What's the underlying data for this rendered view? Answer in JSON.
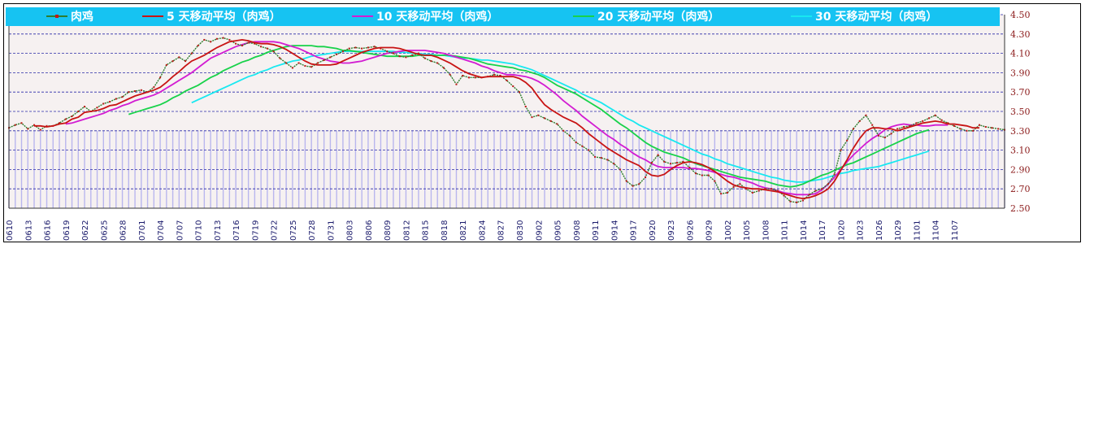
{
  "colors": {
    "legend_bg": "#16c3f2",
    "plot_bg": "#f6f1f1",
    "grid": "#2a2aa8",
    "vbar": "#b9b6ee",
    "axis_text": "#8b1a1a",
    "xtick_text": "#1a1a6b"
  },
  "chart_data": {
    "type": "line",
    "xlabel": "",
    "ylabel": "",
    "ylim": [
      2.5,
      4.5
    ],
    "yticks": [
      "4.50",
      "4.30",
      "4.10",
      "3.90",
      "3.70",
      "3.50",
      "3.30",
      "3.10",
      "2.90",
      "2.70",
      "2.50"
    ],
    "grid": true,
    "legend_position": "top",
    "xticks": [
      "0610",
      "0613",
      "0616",
      "0619",
      "0622",
      "0625",
      "0628",
      "0701",
      "0704",
      "0707",
      "0710",
      "0713",
      "0716",
      "0719",
      "0722",
      "0725",
      "0728",
      "0731",
      "0803",
      "0806",
      "0809",
      "0812",
      "0815",
      "0818",
      "0821",
      "0824",
      "0827",
      "0830",
      "0902",
      "0905",
      "0908",
      "0911",
      "0914",
      "0917",
      "0920",
      "0923",
      "0926",
      "0929",
      "1002",
      "1005",
      "1008",
      "1011",
      "1014",
      "1017",
      "1020",
      "1023",
      "1026",
      "1029",
      "1101",
      "1104",
      "1107"
    ],
    "series": [
      {
        "name": "肉鸡",
        "color": "#2e7d2e",
        "line_color": "#c01818",
        "marker": true,
        "start_index": 0,
        "values": [
          3.33,
          3.36,
          3.38,
          3.32,
          3.36,
          3.31,
          3.35,
          3.35,
          3.38,
          3.42,
          3.45,
          3.5,
          3.55,
          3.5,
          3.54,
          3.58,
          3.6,
          3.63,
          3.65,
          3.7,
          3.71,
          3.72,
          3.7,
          3.75,
          3.85,
          3.98,
          4.02,
          4.06,
          4.02,
          4.1,
          4.18,
          4.24,
          4.22,
          4.25,
          4.26,
          4.24,
          4.2,
          4.18,
          4.21,
          4.2,
          4.17,
          4.15,
          4.12,
          4.05,
          4.0,
          3.95,
          4.0,
          3.97,
          3.96,
          4.0,
          4.03,
          4.06,
          4.09,
          4.12,
          4.15,
          4.16,
          4.15,
          4.16,
          4.17,
          4.15,
          4.12,
          4.1,
          4.07,
          4.06,
          4.08,
          4.1,
          4.05,
          4.02,
          4.0,
          3.95,
          3.88,
          3.78,
          3.87,
          3.85,
          3.85,
          3.85,
          3.86,
          3.88,
          3.87,
          3.82,
          3.76,
          3.7,
          3.55,
          3.44,
          3.46,
          3.43,
          3.4,
          3.37,
          3.3,
          3.25,
          3.18,
          3.14,
          3.1,
          3.03,
          3.02,
          3.0,
          2.96,
          2.9,
          2.78,
          2.73,
          2.75,
          2.82,
          2.97,
          3.05,
          2.98,
          2.96,
          2.97,
          2.98,
          2.92,
          2.86,
          2.84,
          2.84,
          2.78,
          2.65,
          2.66,
          2.72,
          2.75,
          2.7,
          2.66,
          2.68,
          2.7,
          2.7,
          2.68,
          2.63,
          2.57,
          2.56,
          2.58,
          2.64,
          2.68,
          2.7,
          2.75,
          2.85,
          3.1,
          3.2,
          3.32,
          3.4,
          3.46,
          3.36,
          3.25,
          3.23,
          3.27,
          3.32,
          3.34,
          3.35,
          3.38,
          3.4,
          3.43,
          3.46,
          3.41,
          3.38,
          3.35,
          3.32,
          3.3,
          3.3,
          3.36,
          3.34,
          3.33,
          3.32,
          3.31
        ]
      },
      {
        "name": "5  天移动平均（肉鸡）",
        "color": "#c81414",
        "marker": false,
        "start_index": 4,
        "values": [
          3.35,
          3.35,
          3.34,
          3.35,
          3.37,
          3.38,
          3.42,
          3.44,
          3.49,
          3.5,
          3.51,
          3.53,
          3.56,
          3.57,
          3.6,
          3.63,
          3.66,
          3.68,
          3.7,
          3.72,
          3.75,
          3.8,
          3.86,
          3.91,
          3.97,
          4.02,
          4.05,
          4.08,
          4.12,
          4.16,
          4.19,
          4.22,
          4.23,
          4.24,
          4.23,
          4.21,
          4.2,
          4.2,
          4.19,
          4.17,
          4.14,
          4.1,
          4.06,
          4.02,
          3.99,
          3.98,
          3.98,
          3.98,
          3.99,
          4.02,
          4.05,
          4.08,
          4.11,
          4.13,
          4.15,
          4.16,
          4.16,
          4.16,
          4.15,
          4.13,
          4.11,
          4.09,
          4.08,
          4.08,
          4.06,
          4.03,
          4.0,
          3.96,
          3.92,
          3.89,
          3.87,
          3.85,
          3.86,
          3.86,
          3.86,
          3.86,
          3.86,
          3.84,
          3.8,
          3.74,
          3.65,
          3.57,
          3.52,
          3.48,
          3.44,
          3.41,
          3.38,
          3.33,
          3.27,
          3.22,
          3.17,
          3.12,
          3.08,
          3.04,
          3.0,
          2.97,
          2.94,
          2.88,
          2.84,
          2.83,
          2.85,
          2.9,
          2.94,
          2.97,
          2.98,
          2.97,
          2.95,
          2.92,
          2.88,
          2.83,
          2.78,
          2.74,
          2.72,
          2.71,
          2.7,
          2.7,
          2.69,
          2.68,
          2.67,
          2.65,
          2.63,
          2.61,
          2.6,
          2.61,
          2.63,
          2.66,
          2.7,
          2.78,
          2.89,
          3.0,
          3.12,
          3.22,
          3.3,
          3.33,
          3.33,
          3.32,
          3.32,
          3.3,
          3.32,
          3.34,
          3.36,
          3.38,
          3.39,
          3.4,
          3.39,
          3.37,
          3.37,
          3.36,
          3.35,
          3.33,
          3.33
        ]
      },
      {
        "name": "10 天移动平均（肉鸡）",
        "color": "#d21cd2",
        "marker": false,
        "start_index": 9,
        "values": [
          3.37,
          3.38,
          3.4,
          3.42,
          3.44,
          3.46,
          3.48,
          3.51,
          3.53,
          3.56,
          3.58,
          3.61,
          3.63,
          3.65,
          3.67,
          3.7,
          3.74,
          3.78,
          3.82,
          3.86,
          3.9,
          3.95,
          4.0,
          4.05,
          4.08,
          4.11,
          4.14,
          4.17,
          4.19,
          4.21,
          4.22,
          4.22,
          4.22,
          4.22,
          4.21,
          4.19,
          4.17,
          4.15,
          4.12,
          4.09,
          4.06,
          4.04,
          4.02,
          4.01,
          4.0,
          4.0,
          4.01,
          4.02,
          4.04,
          4.06,
          4.08,
          4.1,
          4.11,
          4.12,
          4.13,
          4.13,
          4.13,
          4.13,
          4.12,
          4.11,
          4.1,
          4.08,
          4.06,
          4.04,
          4.02,
          4.0,
          3.97,
          3.95,
          3.92,
          3.9,
          3.88,
          3.88,
          3.87,
          3.86,
          3.84,
          3.81,
          3.77,
          3.72,
          3.67,
          3.61,
          3.56,
          3.51,
          3.45,
          3.4,
          3.35,
          3.3,
          3.25,
          3.21,
          3.16,
          3.12,
          3.07,
          3.03,
          3.0,
          2.96,
          2.93,
          2.92,
          2.92,
          2.92,
          2.92,
          2.91,
          2.91,
          2.9,
          2.89,
          2.87,
          2.85,
          2.83,
          2.82,
          2.8,
          2.78,
          2.76,
          2.73,
          2.71,
          2.7,
          2.68,
          2.66,
          2.65,
          2.64,
          2.64,
          2.64,
          2.65,
          2.69,
          2.75,
          2.82,
          2.9,
          2.98,
          3.05,
          3.11,
          3.17,
          3.22,
          3.26,
          3.31,
          3.34,
          3.36,
          3.37,
          3.36,
          3.36,
          3.35,
          3.35,
          3.36,
          3.36,
          3.36
        ]
      },
      {
        "name": "20 天移动平均（肉鸡）",
        "color": "#18d24a",
        "marker": false,
        "start_index": 19,
        "values": [
          3.47,
          3.49,
          3.51,
          3.53,
          3.55,
          3.57,
          3.6,
          3.64,
          3.67,
          3.71,
          3.74,
          3.77,
          3.81,
          3.85,
          3.88,
          3.92,
          3.95,
          3.98,
          4.01,
          4.03,
          4.06,
          4.08,
          4.11,
          4.13,
          4.15,
          4.17,
          4.18,
          4.18,
          4.18,
          4.18,
          4.17,
          4.17,
          4.16,
          4.15,
          4.13,
          4.13,
          4.12,
          4.11,
          4.1,
          4.09,
          4.08,
          4.07,
          4.07,
          4.07,
          4.07,
          4.07,
          4.08,
          4.08,
          4.08,
          4.08,
          4.08,
          4.08,
          4.07,
          4.06,
          4.05,
          4.03,
          4.01,
          3.99,
          3.98,
          3.97,
          3.96,
          3.95,
          3.93,
          3.92,
          3.9,
          3.88,
          3.85,
          3.81,
          3.77,
          3.74,
          3.71,
          3.68,
          3.64,
          3.6,
          3.56,
          3.52,
          3.47,
          3.42,
          3.37,
          3.33,
          3.28,
          3.23,
          3.18,
          3.14,
          3.11,
          3.08,
          3.06,
          3.04,
          3.02,
          2.99,
          2.96,
          2.94,
          2.92,
          2.9,
          2.88,
          2.86,
          2.84,
          2.82,
          2.81,
          2.8,
          2.79,
          2.78,
          2.76,
          2.74,
          2.73,
          2.72,
          2.73,
          2.75,
          2.78,
          2.81,
          2.84,
          2.86,
          2.89,
          2.92,
          2.95,
          2.97,
          3.0,
          3.03,
          3.06,
          3.09,
          3.12,
          3.15,
          3.18,
          3.21,
          3.24,
          3.27,
          3.29,
          3.31
        ]
      },
      {
        "name": "30 天移动平均（肉鸡）",
        "color": "#18e8f0",
        "marker": false,
        "start_index": 29,
        "values": [
          3.59,
          3.62,
          3.65,
          3.68,
          3.71,
          3.74,
          3.77,
          3.8,
          3.83,
          3.86,
          3.88,
          3.91,
          3.93,
          3.96,
          3.98,
          4.0,
          4.02,
          4.03,
          4.05,
          4.07,
          4.08,
          4.09,
          4.1,
          4.11,
          4.12,
          4.12,
          4.12,
          4.12,
          4.12,
          4.12,
          4.12,
          4.12,
          4.12,
          4.11,
          4.11,
          4.1,
          4.1,
          4.09,
          4.09,
          4.08,
          4.08,
          4.07,
          4.06,
          4.05,
          4.05,
          4.04,
          4.03,
          4.03,
          4.02,
          4.01,
          4.0,
          3.99,
          3.97,
          3.95,
          3.93,
          3.9,
          3.87,
          3.84,
          3.81,
          3.78,
          3.75,
          3.72,
          3.68,
          3.65,
          3.62,
          3.59,
          3.55,
          3.51,
          3.47,
          3.43,
          3.4,
          3.36,
          3.33,
          3.3,
          3.27,
          3.24,
          3.21,
          3.18,
          3.15,
          3.12,
          3.09,
          3.06,
          3.04,
          3.01,
          2.99,
          2.96,
          2.94,
          2.92,
          2.9,
          2.88,
          2.86,
          2.84,
          2.82,
          2.81,
          2.79,
          2.78,
          2.77,
          2.77,
          2.78,
          2.79,
          2.8,
          2.82,
          2.84,
          2.86,
          2.87,
          2.89,
          2.9,
          2.91,
          2.92,
          2.93,
          2.95,
          2.97,
          2.99,
          3.01,
          3.03,
          3.05,
          3.07,
          3.09
        ]
      }
    ]
  }
}
